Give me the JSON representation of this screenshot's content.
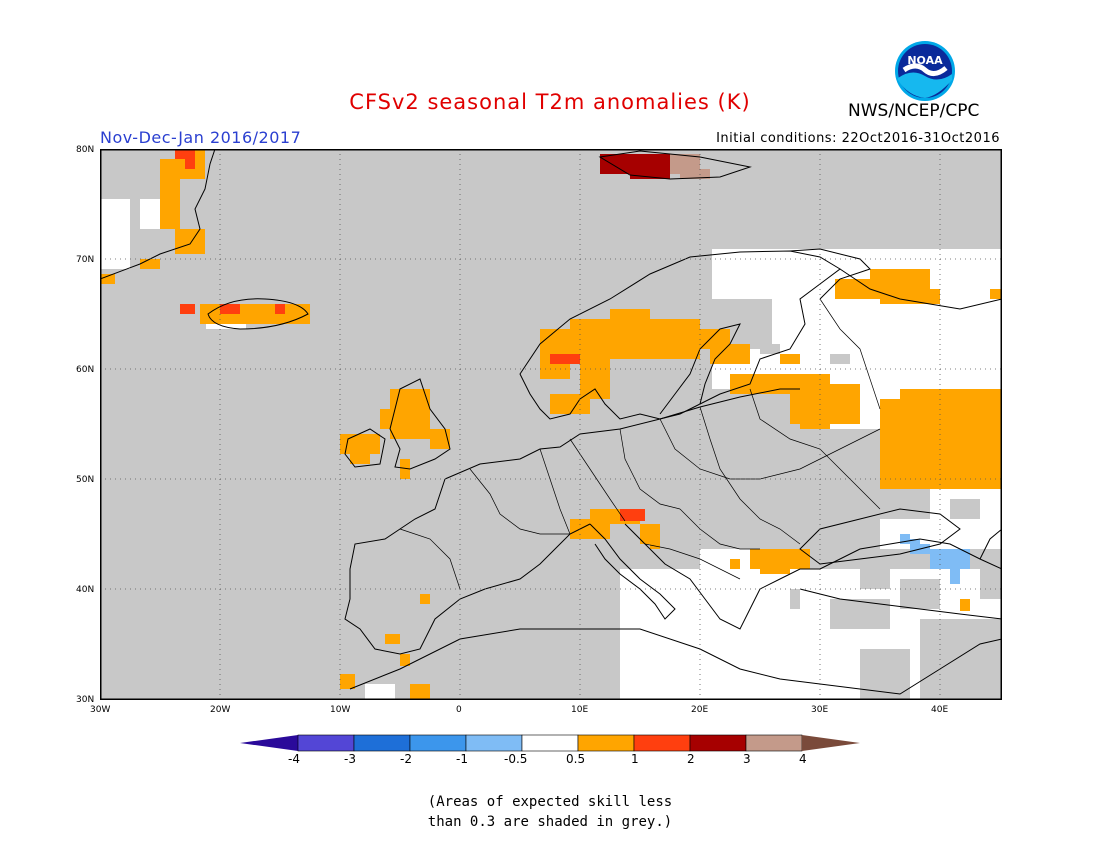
{
  "title": "CFSv2 seasonal T2m anomalies (K)",
  "agency": "NWS/NCEP/CPC",
  "period": "Nov-Dec-Jan 2016/2017",
  "initial_conditions": "Initial conditions: 22Oct2016-31Oct2016",
  "logo_text": "NOAA",
  "latitude_labels": [
    "80N",
    "70N",
    "60N",
    "50N",
    "40N",
    "30N"
  ],
  "longitude_labels": [
    "30W",
    "20W",
    "10W",
    "0",
    "10E",
    "20E",
    "30E",
    "40E"
  ],
  "colorbar": {
    "labels": [
      "-4",
      "-3",
      "-2",
      "-1",
      "-0.5",
      "0.5",
      "1",
      "2",
      "3",
      "4"
    ],
    "colors": [
      "#2a0a9a",
      "#5346d6",
      "#1e6fd8",
      "#3c96ec",
      "#7fbcf5",
      "#ffffff",
      "#ffa500",
      "#ff3f0f",
      "#a60000",
      "#c49a8a",
      "#7a4a3a"
    ]
  },
  "colors": {
    "grey_low_skill": "#c8c8c8",
    "orange_0_5_to_1": "#ffa500",
    "red_1_to_2": "#ff3f0f",
    "darkred_2_to_3": "#a60000",
    "pink_3_to_4": "#c49a8a",
    "lightblue_neg1_to_neg0_5": "#7fbcf5"
  },
  "note_lines": [
    "(Areas of expected skill less",
    "than 0.3 are shaded in grey.)"
  ]
}
